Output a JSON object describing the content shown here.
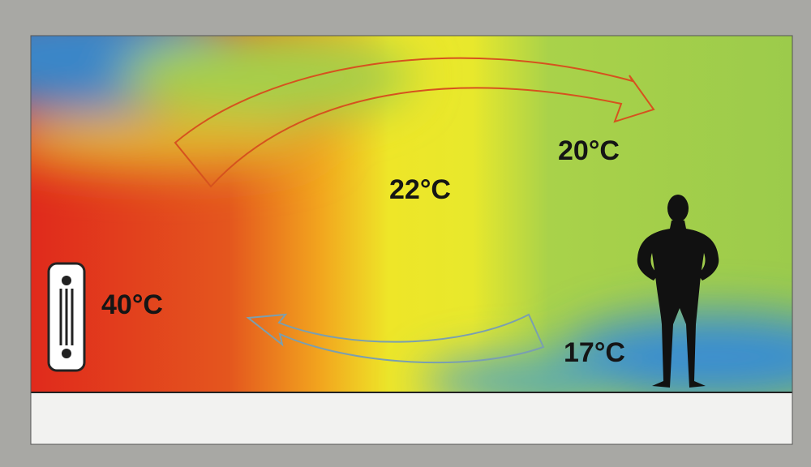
{
  "labels": [
    "40°C",
    "22°C",
    "20°C",
    "17°C"
  ]
}
